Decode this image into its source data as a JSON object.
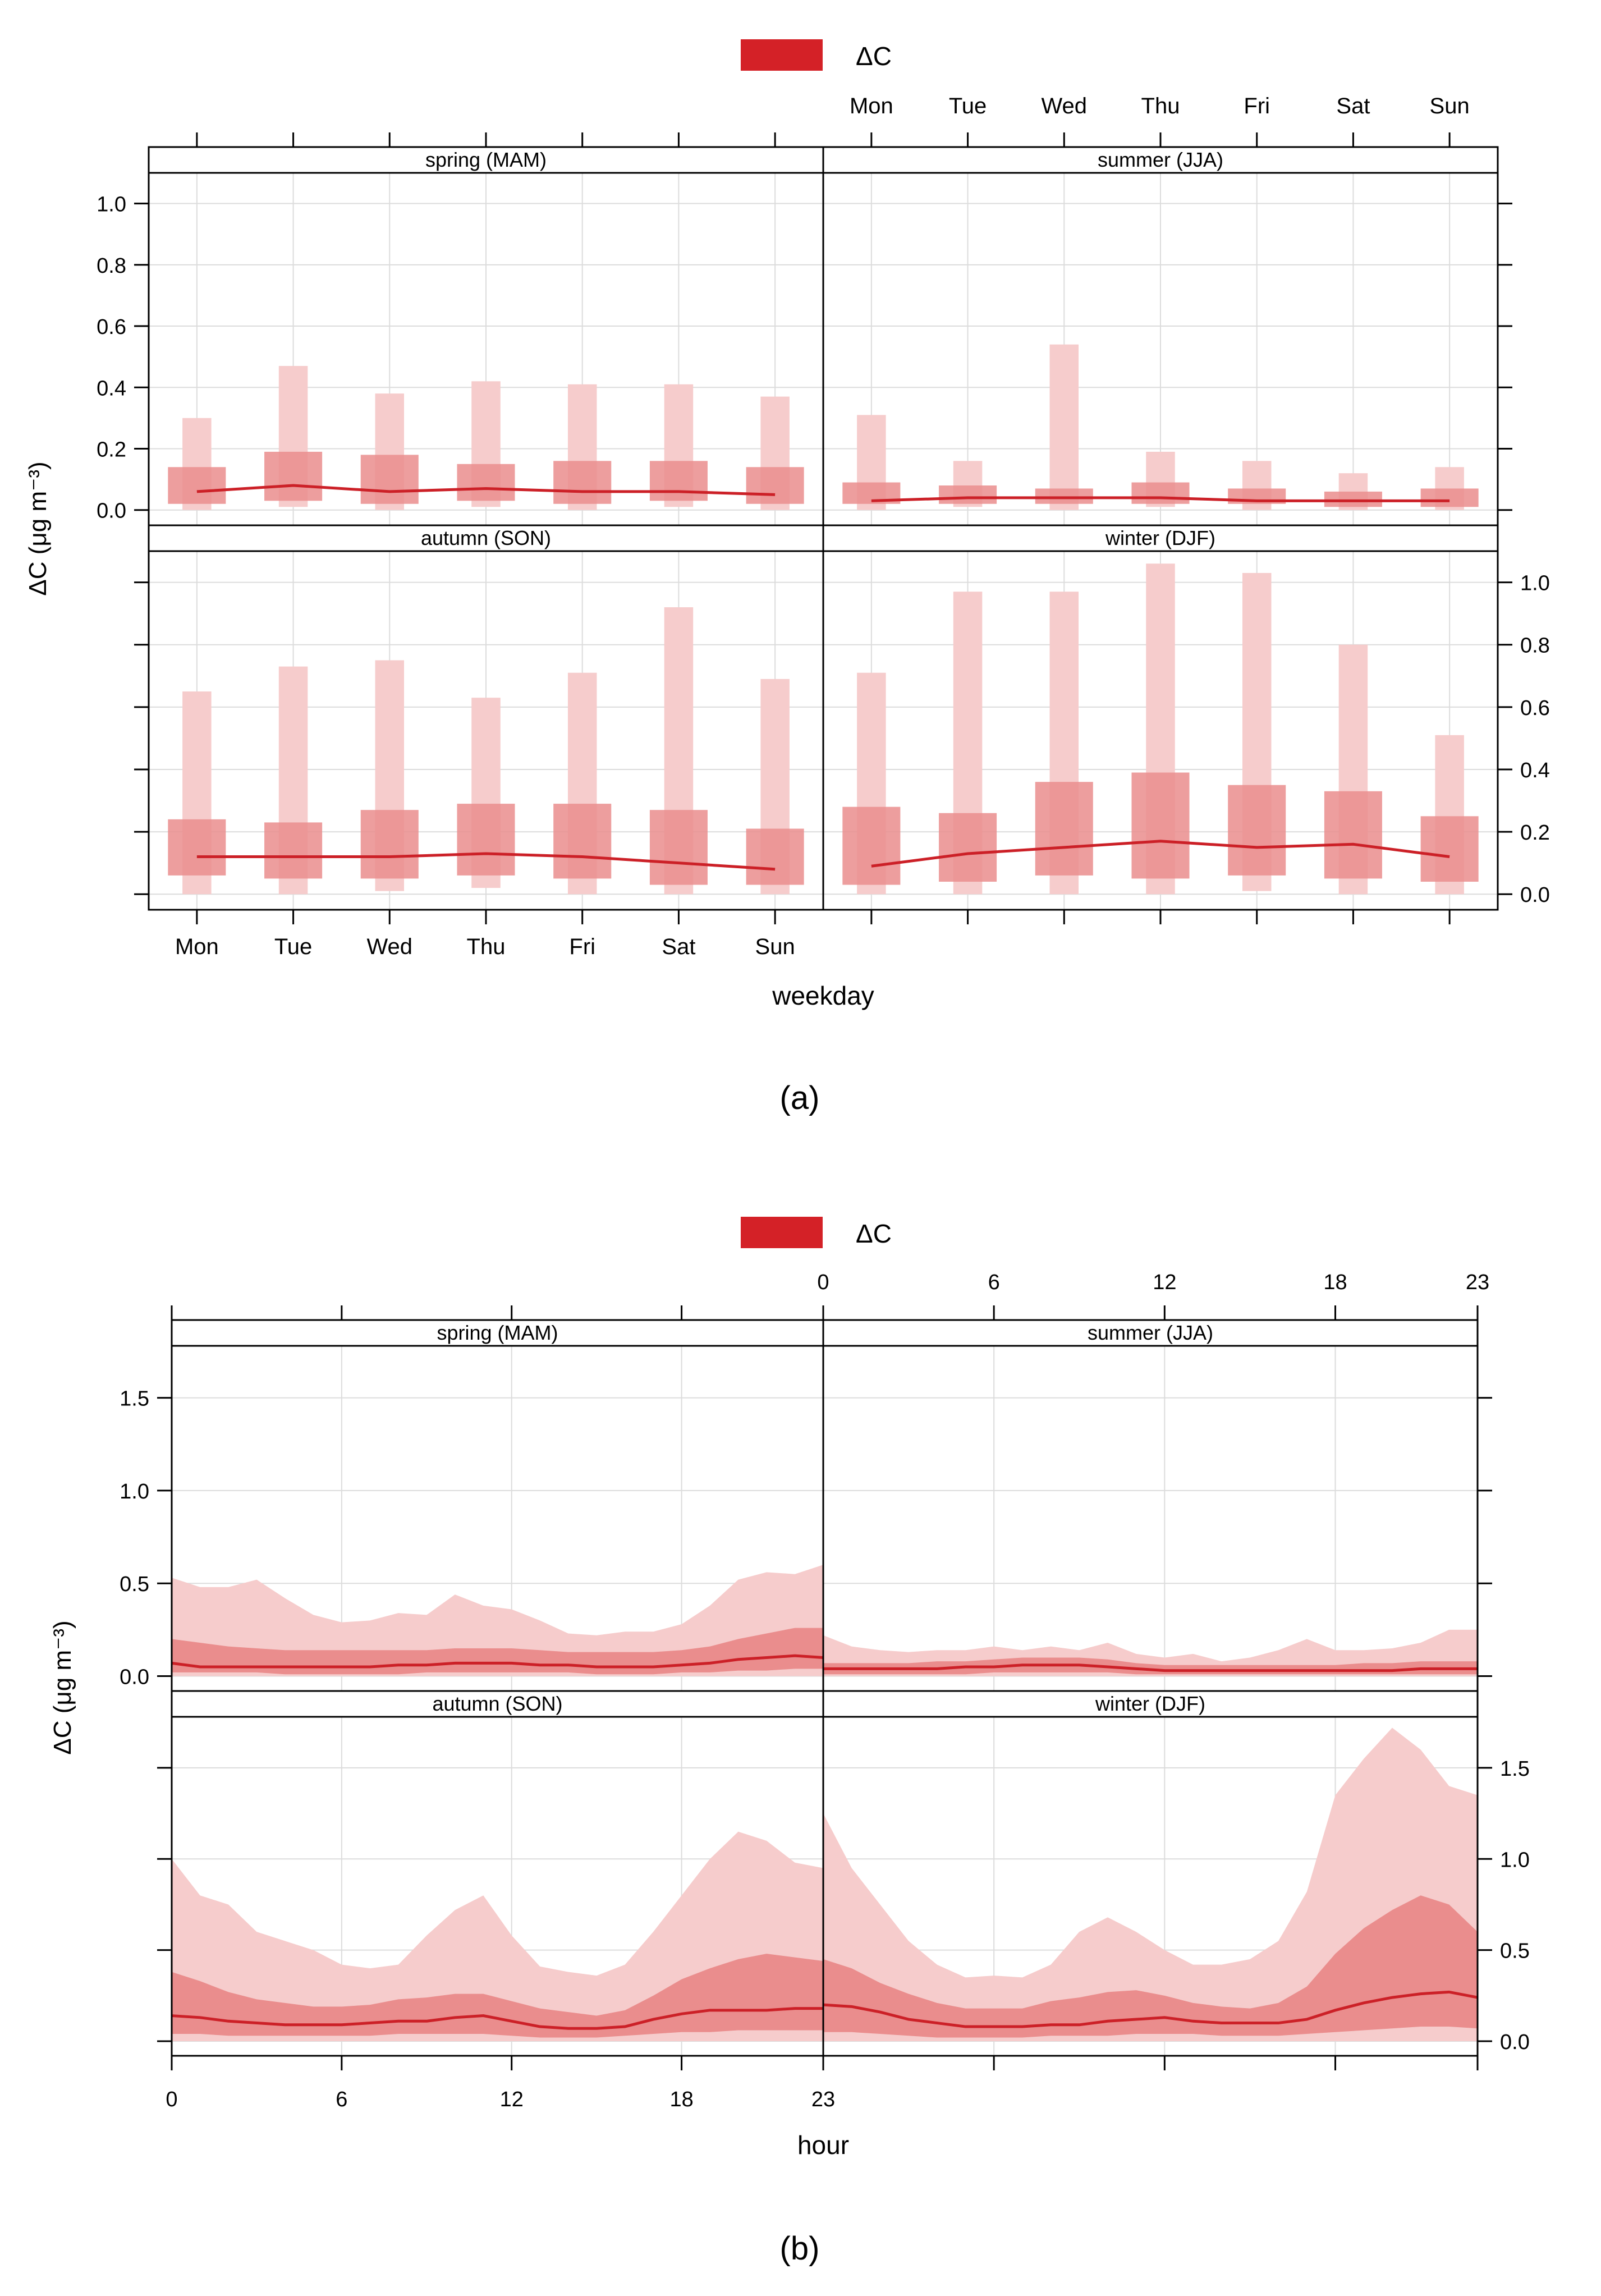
{
  "colors": {
    "line": "#cc2027",
    "outer": "#f6cccc",
    "inner": "#ea8d8d",
    "legend": "#d42127",
    "frame": "#000000",
    "grid": "#dcdcdc"
  },
  "chart_data": [
    {
      "id": "a",
      "type": "box-range",
      "panel_label": "(a)",
      "legend_label": "ΔC",
      "xlabel": "weekday",
      "ylabel": "ΔC (μg m⁻³)",
      "categories": [
        "Mon",
        "Tue",
        "Wed",
        "Thu",
        "Fri",
        "Sat",
        "Sun"
      ],
      "ylim": [
        -0.05,
        1.1
      ],
      "yticks": [
        0.0,
        0.2,
        0.4,
        0.6,
        0.8,
        1.0
      ],
      "ytick_labels": [
        "0.0",
        "0.2",
        "0.4",
        "0.6",
        "0.8",
        "1.0"
      ],
      "panels": [
        {
          "title": "spring (MAM)",
          "median": [
            0.06,
            0.08,
            0.06,
            0.07,
            0.06,
            0.06,
            0.05
          ],
          "q25": [
            0.02,
            0.03,
            0.02,
            0.03,
            0.02,
            0.03,
            0.02
          ],
          "q75": [
            0.14,
            0.19,
            0.18,
            0.15,
            0.16,
            0.16,
            0.14
          ],
          "q05": [
            0.0,
            0.01,
            0.0,
            0.01,
            0.0,
            0.01,
            0.0
          ],
          "q95": [
            0.3,
            0.47,
            0.38,
            0.42,
            0.41,
            0.41,
            0.37
          ]
        },
        {
          "title": "summer (JJA)",
          "median": [
            0.03,
            0.04,
            0.04,
            0.04,
            0.03,
            0.03,
            0.03
          ],
          "q25": [
            0.02,
            0.02,
            0.02,
            0.02,
            0.02,
            0.01,
            0.01
          ],
          "q75": [
            0.09,
            0.08,
            0.07,
            0.09,
            0.07,
            0.06,
            0.07
          ],
          "q05": [
            0.0,
            0.01,
            0.0,
            0.01,
            0.0,
            0.0,
            0.0
          ],
          "q95": [
            0.31,
            0.16,
            0.54,
            0.19,
            0.16,
            0.12,
            0.14
          ]
        },
        {
          "title": "autumn (SON)",
          "median": [
            0.12,
            0.12,
            0.12,
            0.13,
            0.12,
            0.1,
            0.08
          ],
          "q25": [
            0.06,
            0.05,
            0.05,
            0.06,
            0.05,
            0.03,
            0.03
          ],
          "q75": [
            0.24,
            0.23,
            0.27,
            0.29,
            0.29,
            0.27,
            0.21
          ],
          "q05": [
            0.0,
            0.0,
            0.01,
            0.02,
            0.0,
            0.0,
            0.0
          ],
          "q95": [
            0.65,
            0.73,
            0.75,
            0.63,
            0.71,
            0.92,
            0.69
          ]
        },
        {
          "title": "winter (DJF)",
          "median": [
            0.09,
            0.13,
            0.15,
            0.17,
            0.15,
            0.16,
            0.12
          ],
          "q25": [
            0.03,
            0.04,
            0.06,
            0.05,
            0.06,
            0.05,
            0.04
          ],
          "q75": [
            0.28,
            0.26,
            0.36,
            0.39,
            0.35,
            0.33,
            0.25
          ],
          "q05": [
            0.0,
            0.0,
            0.0,
            0.0,
            0.01,
            0.0,
            0.0
          ],
          "q95": [
            0.71,
            0.97,
            0.97,
            1.06,
            1.03,
            0.8,
            0.51
          ]
        }
      ]
    },
    {
      "id": "b",
      "type": "area",
      "panel_label": "(b)",
      "legend_label": "ΔC",
      "xlabel": "hour",
      "ylabel": "ΔC (μg m⁻³)",
      "xlim": [
        0,
        23
      ],
      "xticks": [
        0,
        6,
        12,
        18,
        23
      ],
      "xtick_labels": [
        "0",
        "6",
        "12",
        "18",
        "23"
      ],
      "ylim": [
        -0.08,
        1.78
      ],
      "yticks": [
        0.0,
        0.5,
        1.0,
        1.5
      ],
      "ytick_labels": [
        "0.0",
        "0.5",
        "1.0",
        "1.5"
      ],
      "panels": [
        {
          "title": "spring (MAM)",
          "median": [
            0.07,
            0.05,
            0.05,
            0.05,
            0.05,
            0.05,
            0.05,
            0.05,
            0.06,
            0.06,
            0.07,
            0.07,
            0.07,
            0.06,
            0.06,
            0.05,
            0.05,
            0.05,
            0.06,
            0.07,
            0.09,
            0.1,
            0.11,
            0.1
          ],
          "q25": [
            0.02,
            0.02,
            0.02,
            0.02,
            0.01,
            0.01,
            0.01,
            0.01,
            0.01,
            0.02,
            0.02,
            0.02,
            0.02,
            0.02,
            0.02,
            0.01,
            0.01,
            0.01,
            0.02,
            0.02,
            0.03,
            0.03,
            0.04,
            0.04
          ],
          "q75": [
            0.2,
            0.18,
            0.16,
            0.15,
            0.14,
            0.14,
            0.14,
            0.14,
            0.14,
            0.14,
            0.15,
            0.15,
            0.15,
            0.14,
            0.13,
            0.13,
            0.13,
            0.13,
            0.14,
            0.16,
            0.2,
            0.23,
            0.26,
            0.26
          ],
          "q05": [
            0.0,
            0.0,
            0.0,
            0.0,
            0.0,
            0.0,
            0.0,
            0.0,
            0.0,
            0.0,
            0.0,
            0.0,
            0.0,
            0.0,
            0.0,
            0.0,
            0.0,
            0.0,
            0.0,
            0.0,
            0.0,
            0.0,
            0.0,
            0.0
          ],
          "q95": [
            0.53,
            0.48,
            0.48,
            0.52,
            0.42,
            0.33,
            0.29,
            0.3,
            0.34,
            0.33,
            0.44,
            0.38,
            0.36,
            0.3,
            0.23,
            0.22,
            0.24,
            0.24,
            0.28,
            0.38,
            0.52,
            0.56,
            0.55,
            0.6
          ]
        },
        {
          "title": "summer (JJA)",
          "median": [
            0.04,
            0.04,
            0.04,
            0.04,
            0.04,
            0.05,
            0.05,
            0.06,
            0.06,
            0.06,
            0.05,
            0.04,
            0.03,
            0.03,
            0.03,
            0.03,
            0.03,
            0.03,
            0.03,
            0.03,
            0.03,
            0.04,
            0.04,
            0.04
          ],
          "q25": [
            0.01,
            0.01,
            0.01,
            0.01,
            0.01,
            0.01,
            0.02,
            0.02,
            0.02,
            0.02,
            0.02,
            0.01,
            0.01,
            0.01,
            0.01,
            0.01,
            0.01,
            0.01,
            0.01,
            0.01,
            0.01,
            0.01,
            0.01,
            0.01
          ],
          "q75": [
            0.07,
            0.07,
            0.07,
            0.07,
            0.08,
            0.08,
            0.09,
            0.1,
            0.1,
            0.1,
            0.09,
            0.07,
            0.06,
            0.06,
            0.06,
            0.06,
            0.06,
            0.06,
            0.06,
            0.07,
            0.07,
            0.08,
            0.08,
            0.08
          ],
          "q05": [
            0.0,
            0.0,
            0.0,
            0.0,
            0.0,
            0.0,
            0.0,
            0.0,
            0.0,
            0.0,
            0.0,
            0.0,
            0.0,
            0.0,
            0.0,
            0.0,
            0.0,
            0.0,
            0.0,
            0.0,
            0.0,
            0.0,
            0.0,
            0.0
          ],
          "q95": [
            0.22,
            0.16,
            0.14,
            0.13,
            0.14,
            0.14,
            0.16,
            0.14,
            0.16,
            0.14,
            0.18,
            0.12,
            0.1,
            0.12,
            0.08,
            0.1,
            0.14,
            0.2,
            0.14,
            0.14,
            0.15,
            0.18,
            0.25,
            0.25
          ]
        },
        {
          "title": "autumn (SON)",
          "median": [
            0.14,
            0.13,
            0.11,
            0.1,
            0.09,
            0.09,
            0.09,
            0.1,
            0.11,
            0.11,
            0.13,
            0.14,
            0.11,
            0.08,
            0.07,
            0.07,
            0.08,
            0.12,
            0.15,
            0.17,
            0.17,
            0.17,
            0.18,
            0.18
          ],
          "q25": [
            0.04,
            0.04,
            0.03,
            0.03,
            0.03,
            0.03,
            0.03,
            0.03,
            0.04,
            0.04,
            0.04,
            0.04,
            0.03,
            0.02,
            0.02,
            0.02,
            0.03,
            0.04,
            0.05,
            0.05,
            0.06,
            0.06,
            0.06,
            0.06
          ],
          "q75": [
            0.38,
            0.33,
            0.27,
            0.23,
            0.21,
            0.19,
            0.19,
            0.2,
            0.23,
            0.24,
            0.26,
            0.26,
            0.22,
            0.18,
            0.16,
            0.14,
            0.17,
            0.25,
            0.34,
            0.4,
            0.45,
            0.48,
            0.46,
            0.44
          ],
          "q05": [
            0.0,
            0.0,
            0.0,
            0.0,
            0.0,
            0.0,
            0.0,
            0.0,
            0.0,
            0.0,
            0.0,
            0.0,
            0.0,
            0.0,
            0.0,
            0.0,
            0.0,
            0.0,
            0.0,
            0.0,
            0.0,
            0.0,
            0.0,
            0.0
          ],
          "q95": [
            1.0,
            0.8,
            0.75,
            0.6,
            0.55,
            0.5,
            0.42,
            0.4,
            0.42,
            0.58,
            0.72,
            0.8,
            0.58,
            0.41,
            0.38,
            0.36,
            0.42,
            0.6,
            0.8,
            1.0,
            1.15,
            1.1,
            0.98,
            0.95
          ]
        },
        {
          "title": "winter (DJF)",
          "median": [
            0.2,
            0.19,
            0.16,
            0.12,
            0.1,
            0.08,
            0.08,
            0.08,
            0.09,
            0.09,
            0.11,
            0.12,
            0.13,
            0.11,
            0.1,
            0.1,
            0.1,
            0.12,
            0.17,
            0.21,
            0.24,
            0.26,
            0.27,
            0.24
          ],
          "q25": [
            0.05,
            0.05,
            0.04,
            0.03,
            0.02,
            0.02,
            0.02,
            0.02,
            0.03,
            0.03,
            0.03,
            0.04,
            0.04,
            0.04,
            0.03,
            0.03,
            0.03,
            0.04,
            0.05,
            0.06,
            0.07,
            0.08,
            0.08,
            0.07
          ],
          "q75": [
            0.45,
            0.4,
            0.32,
            0.26,
            0.21,
            0.18,
            0.18,
            0.18,
            0.22,
            0.24,
            0.27,
            0.28,
            0.25,
            0.21,
            0.19,
            0.18,
            0.21,
            0.3,
            0.48,
            0.62,
            0.72,
            0.8,
            0.75,
            0.6
          ],
          "q05": [
            0.0,
            0.0,
            0.0,
            0.0,
            0.0,
            0.0,
            0.0,
            0.0,
            0.0,
            0.0,
            0.0,
            0.0,
            0.0,
            0.0,
            0.0,
            0.0,
            0.0,
            0.0,
            0.0,
            0.0,
            0.0,
            0.0,
            0.0,
            0.0
          ],
          "q95": [
            1.25,
            0.95,
            0.75,
            0.55,
            0.42,
            0.35,
            0.36,
            0.35,
            0.42,
            0.6,
            0.68,
            0.6,
            0.5,
            0.42,
            0.42,
            0.45,
            0.55,
            0.82,
            1.35,
            1.55,
            1.72,
            1.6,
            1.4,
            1.35
          ]
        }
      ]
    }
  ]
}
